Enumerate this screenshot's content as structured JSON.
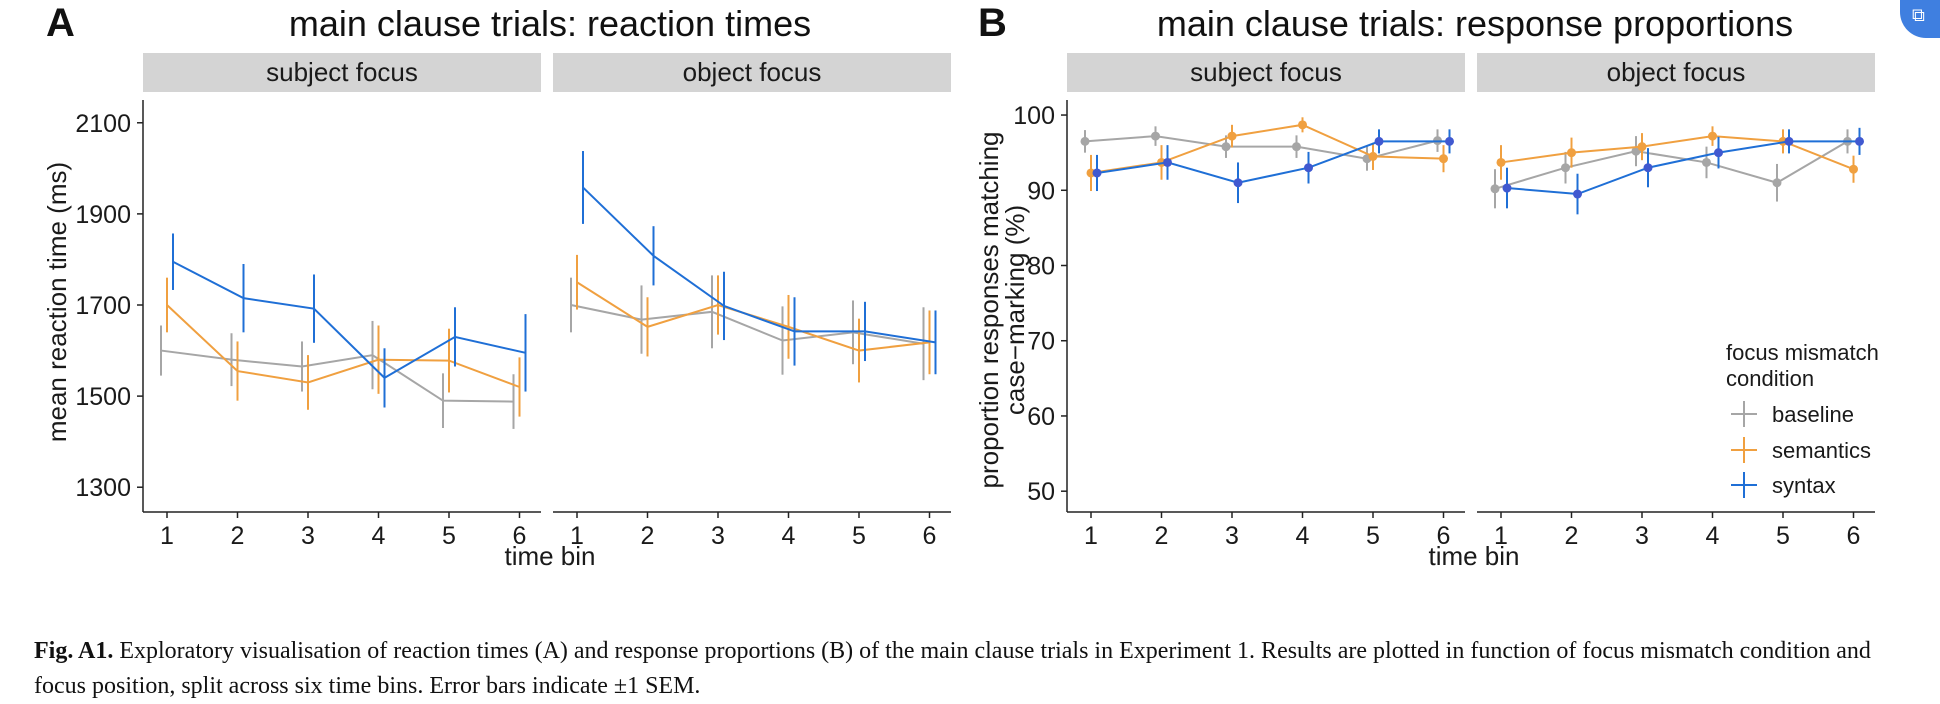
{
  "figure": {
    "caption_label": "Fig. A1.",
    "caption_text": " Exploratory visualisation of reaction times (A) and response proportions (B) of the main clause trials in Experiment 1. Results are plotted in function of focus mismatch condition and focus position, split across six time bins. Error bars indicate ±1 SEM."
  },
  "colors": {
    "baseline": "#a6a6a6",
    "semantics": "#f0a040",
    "syntax": "#1f6fd6",
    "syntax_points": "#4059d0",
    "strip": "#d4d4d4",
    "badge": "#3f7fe0"
  },
  "legend": {
    "title_line1": "focus mismatch",
    "title_line2": "condition",
    "items": [
      "baseline",
      "semantics",
      "syntax"
    ]
  },
  "chart_data": [
    {
      "panel": "A",
      "type": "line",
      "title": "main clause trials: reaction times",
      "xlabel": "time bin",
      "ylabel": "mean reaction time (ms)",
      "x": [
        1,
        2,
        3,
        4,
        5,
        6
      ],
      "ylim": [
        1250,
        2150
      ],
      "yticks": [
        1300,
        1500,
        1700,
        1900,
        2100
      ],
      "grid": false,
      "error_bars": "±1 SEM",
      "facets": [
        {
          "label": "subject focus",
          "series": [
            {
              "name": "baseline",
              "values": [
                1600,
                1580,
                1565,
                1590,
                1490,
                1488
              ],
              "se": [
                55,
                58,
                55,
                75,
                60,
                60
              ]
            },
            {
              "name": "semantics",
              "values": [
                1700,
                1555,
                1530,
                1580,
                1578,
                1520
              ],
              "se": [
                60,
                65,
                60,
                75,
                70,
                65
              ]
            },
            {
              "name": "syntax",
              "values": [
                1795,
                1715,
                1692,
                1540,
                1630,
                1595
              ],
              "se": [
                62,
                75,
                75,
                65,
                65,
                85
              ]
            }
          ]
        },
        {
          "label": "object focus",
          "series": [
            {
              "name": "baseline",
              "values": [
                1700,
                1668,
                1685,
                1622,
                1640,
                1615
              ],
              "se": [
                60,
                75,
                80,
                75,
                70,
                80
              ]
            },
            {
              "name": "semantics",
              "values": [
                1750,
                1652,
                1700,
                1652,
                1600,
                1618
              ],
              "se": [
                60,
                65,
                65,
                70,
                70,
                70
              ]
            },
            {
              "name": "syntax",
              "values": [
                1958,
                1808,
                1698,
                1642,
                1642,
                1618
              ],
              "se": [
                80,
                65,
                75,
                75,
                65,
                70
              ]
            }
          ]
        }
      ]
    },
    {
      "panel": "B",
      "type": "line",
      "title": "main clause trials: response proportions",
      "xlabel": "time bin",
      "ylabel_line1": "proportion responses matching",
      "ylabel_line2": "case−marking (%)",
      "x": [
        1,
        2,
        3,
        4,
        5,
        6
      ],
      "ylim": [
        47.5,
        102
      ],
      "yticks": [
        50,
        60,
        70,
        80,
        90,
        100
      ],
      "grid": false,
      "error_bars": "±1 SEM",
      "legend_position": "right",
      "facets": [
        {
          "label": "subject focus",
          "series": [
            {
              "name": "baseline",
              "values": [
                96.5,
                97.2,
                95.8,
                95.8,
                94.2,
                96.6
              ],
              "se": [
                1.5,
                1.3,
                1.5,
                1.5,
                1.6,
                1.5
              ]
            },
            {
              "name": "semantics",
              "values": [
                92.3,
                93.7,
                97.2,
                98.7,
                94.5,
                94.2
              ],
              "se": [
                2.4,
                2.3,
                1.5,
                1.0,
                1.8,
                1.8
              ]
            },
            {
              "name": "syntax",
              "values": [
                92.3,
                93.7,
                91.0,
                93.0,
                96.5,
                96.5
              ],
              "se": [
                2.4,
                2.3,
                2.7,
                2.1,
                1.6,
                1.6
              ]
            }
          ]
        },
        {
          "label": "object focus",
          "series": [
            {
              "name": "baseline",
              "values": [
                90.2,
                93.0,
                95.2,
                93.7,
                91.0,
                96.5
              ],
              "se": [
                2.6,
                2.1,
                2.0,
                2.1,
                2.5,
                1.6
              ]
            },
            {
              "name": "semantics",
              "values": [
                93.7,
                95.0,
                95.8,
                97.2,
                96.5,
                92.8
              ],
              "se": [
                2.3,
                2.0,
                1.8,
                1.3,
                1.6,
                1.8
              ]
            },
            {
              "name": "syntax",
              "values": [
                90.3,
                89.5,
                93.0,
                95.0,
                96.5,
                96.5
              ],
              "se": [
                2.7,
                2.7,
                2.6,
                2.1,
                1.6,
                1.8
              ]
            }
          ]
        }
      ]
    }
  ]
}
